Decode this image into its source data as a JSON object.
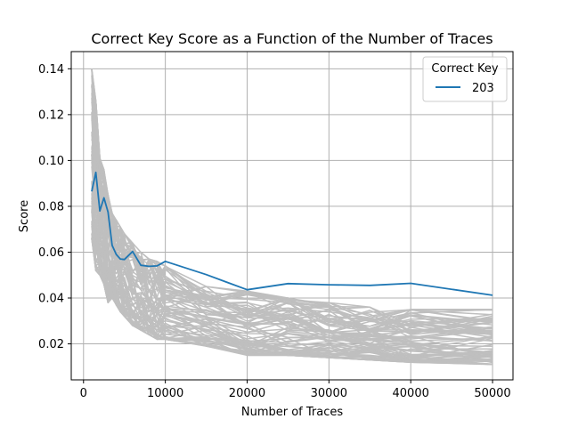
{
  "chart_data": {
    "type": "line",
    "title": "Correct Key Score as a Function of the Number of Traces",
    "xlabel": "Number of Traces",
    "ylabel": "Score",
    "xlim": [
      -1500,
      52500
    ],
    "ylim": [
      0.0043,
      0.1475
    ],
    "xticks": [
      0,
      10000,
      20000,
      30000,
      40000,
      50000
    ],
    "yticks": [
      0.02,
      0.04,
      0.06,
      0.08,
      0.1,
      0.12,
      0.14
    ],
    "grid": true,
    "legend": {
      "title": "Correct Key",
      "placement": "top-right",
      "entries": [
        "203"
      ]
    },
    "colors": {
      "highlight": "#1f77b4",
      "others": "#bfbfbf"
    },
    "x": [
      1000,
      1500,
      2000,
      2500,
      3000,
      3500,
      4000,
      4500,
      5000,
      6000,
      7000,
      8000,
      9000,
      10000,
      15000,
      20000,
      25000,
      30000,
      35000,
      40000,
      50000
    ],
    "series": [
      {
        "name": "203",
        "values": [
          0.0865,
          0.0948,
          0.078,
          0.0837,
          0.0775,
          0.063,
          0.059,
          0.057,
          0.0568,
          0.0603,
          0.0543,
          0.0538,
          0.054,
          0.056,
          0.0502,
          0.0436,
          0.0463,
          0.0458,
          0.0455,
          0.0464,
          0.0412
        ]
      }
    ],
    "background_band": {
      "description_count": 80,
      "x": [
        1000,
        1500,
        2000,
        2500,
        3000,
        3500,
        4000,
        4500,
        5000,
        6000,
        7000,
        8000,
        9000,
        10000,
        15000,
        20000,
        25000,
        30000,
        35000,
        40000,
        50000
      ],
      "low": [
        0.066,
        0.052,
        0.05,
        0.046,
        0.038,
        0.04,
        0.037,
        0.034,
        0.032,
        0.028,
        0.026,
        0.024,
        0.022,
        0.022,
        0.019,
        0.015,
        0.015,
        0.014,
        0.013,
        0.012,
        0.011
      ],
      "high": [
        0.14,
        0.126,
        0.101,
        0.096,
        0.085,
        0.077,
        0.074,
        0.071,
        0.068,
        0.064,
        0.06,
        0.057,
        0.056,
        0.054,
        0.045,
        0.043,
        0.04,
        0.038,
        0.036,
        0.035,
        0.035
      ]
    }
  }
}
